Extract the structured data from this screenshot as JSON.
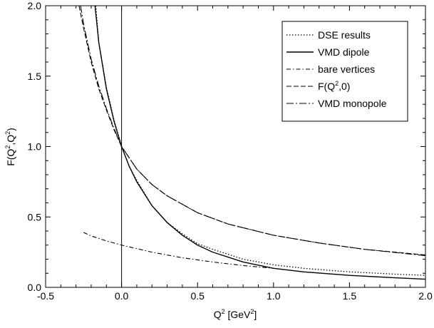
{
  "chart_data": {
    "type": "line",
    "xlabel": {
      "pre": "Q",
      "sup": "2",
      "mid": " [GeV",
      "sup2": "2",
      "post": "]"
    },
    "ylabel": {
      "pre": "F(Q",
      "sup": "2",
      "mid": ",Q",
      "sup2": "2",
      "post": ")"
    },
    "xlim": [
      -0.5,
      2.0
    ],
    "ylim": [
      0.0,
      2.0
    ],
    "x_ticks": [
      -0.5,
      0.0,
      0.5,
      1.0,
      1.5,
      2.0
    ],
    "y_ticks": [
      0.0,
      0.5,
      1.0,
      1.5,
      2.0
    ],
    "x_tick_labels": [
      "-0.5",
      "0.0",
      "0.5",
      "1.0",
      "1.5",
      "2.0"
    ],
    "y_tick_labels": [
      "0.0",
      "0.5",
      "1.0",
      "1.5",
      "2.0"
    ],
    "vertical_reference_line_x": 0.0,
    "grid": false,
    "legend_position": "top-right",
    "series": [
      {
        "name": "DSE results",
        "style": "dotted",
        "x": [
          -0.17,
          -0.15,
          -0.1,
          -0.05,
          0.0,
          0.05,
          0.1,
          0.2,
          0.3,
          0.4,
          0.5,
          0.6,
          0.8,
          1.0,
          1.2,
          1.5,
          1.8,
          2.0
        ],
        "y": [
          2.0,
          1.74,
          1.42,
          1.19,
          1.0,
          0.86,
          0.76,
          0.58,
          0.46,
          0.38,
          0.31,
          0.27,
          0.2,
          0.16,
          0.135,
          0.11,
          0.094,
          0.085
        ]
      },
      {
        "name": "VMD dipole",
        "style": "solid",
        "x": [
          -0.175,
          -0.15,
          -0.1,
          -0.05,
          0.0,
          0.05,
          0.1,
          0.2,
          0.3,
          0.4,
          0.5,
          0.6,
          0.8,
          1.0,
          1.2,
          1.5,
          1.8,
          2.0
        ],
        "y": [
          2.0,
          1.74,
          1.41,
          1.18,
          1.0,
          0.86,
          0.75,
          0.58,
          0.46,
          0.37,
          0.3,
          0.25,
          0.18,
          0.135,
          0.11,
          0.085,
          0.068,
          0.058
        ]
      },
      {
        "name": "bare vertices",
        "style": "dash-dot",
        "x": [
          -0.25,
          -0.2,
          -0.1,
          0.0,
          0.2,
          0.4,
          0.6,
          0.8,
          1.0
        ],
        "y": [
          0.39,
          0.365,
          0.33,
          0.3,
          0.25,
          0.21,
          0.18,
          0.155,
          0.135
        ]
      },
      {
        "name": "F(Q²,0)",
        "label_parts": {
          "pre": "F(Q",
          "sup": "2",
          "post": ",0)"
        },
        "style": "dashed",
        "x": [
          -0.28,
          -0.25,
          -0.2,
          -0.15,
          -0.1,
          -0.05,
          0.0,
          0.1,
          0.2,
          0.3,
          0.5,
          0.7,
          1.0,
          1.3,
          1.6,
          2.0
        ],
        "y": [
          2.0,
          1.84,
          1.6,
          1.41,
          1.26,
          1.12,
          1.0,
          0.84,
          0.73,
          0.65,
          0.53,
          0.45,
          0.37,
          0.315,
          0.27,
          0.23
        ]
      },
      {
        "name": "VMD monopole",
        "style": "dash-dot-long",
        "x": [
          -0.27,
          -0.25,
          -0.2,
          -0.15,
          -0.1,
          -0.05,
          0.0,
          0.1,
          0.2,
          0.3,
          0.5,
          0.7,
          1.0,
          1.3,
          1.6,
          2.0
        ],
        "y": [
          2.0,
          1.87,
          1.62,
          1.43,
          1.27,
          1.13,
          1.0,
          0.84,
          0.73,
          0.65,
          0.53,
          0.45,
          0.37,
          0.315,
          0.27,
          0.225
        ]
      }
    ]
  }
}
